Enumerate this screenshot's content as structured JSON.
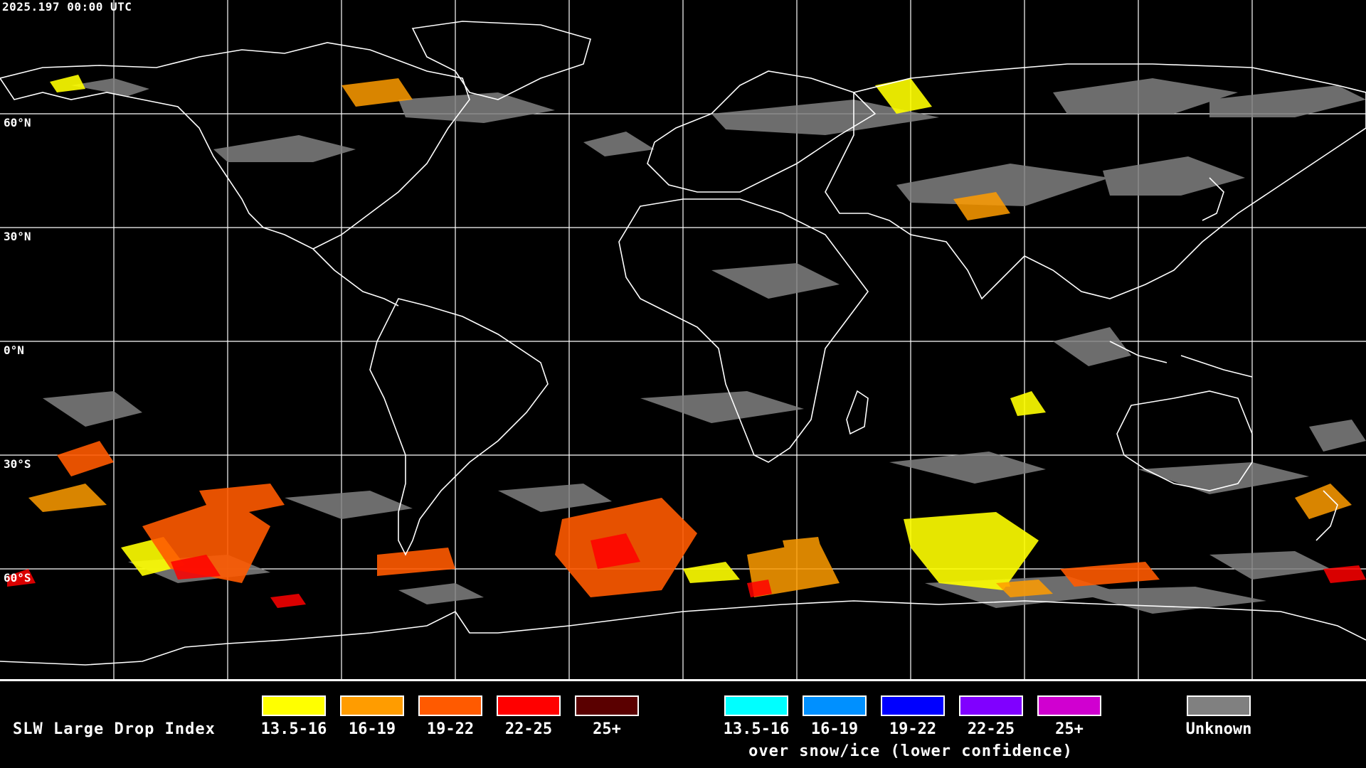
{
  "header": {
    "timestamp": "2025.197 00:00 UTC"
  },
  "latitude_labels": [
    "60°N",
    "30°N",
    "0°N",
    "30°S",
    "60°S"
  ],
  "legend": {
    "title": "SLW Large Drop Index",
    "regular": [
      {
        "label": "13.5-16",
        "color": "#ffff00"
      },
      {
        "label": "16-19",
        "color": "#ff9c00"
      },
      {
        "label": "19-22",
        "color": "#ff5a00"
      },
      {
        "label": "22-25",
        "color": "#ff0000"
      },
      {
        "label": "25+",
        "color": "#5a0000"
      }
    ],
    "snow_ice": [
      {
        "label": "13.5-16",
        "color": "#00ffff"
      },
      {
        "label": "16-19",
        "color": "#0090ff"
      },
      {
        "label": "19-22",
        "color": "#0000ff"
      },
      {
        "label": "22-25",
        "color": "#8000ff"
      },
      {
        "label": "25+",
        "color": "#d000d0"
      }
    ],
    "snow_caption": "over snow/ice (lower confidence)",
    "unknown": {
      "label": "Unknown",
      "color": "#808080"
    }
  },
  "colors": {
    "background": "#000000",
    "grid": "#ffffff",
    "coast": "#ffffff"
  }
}
